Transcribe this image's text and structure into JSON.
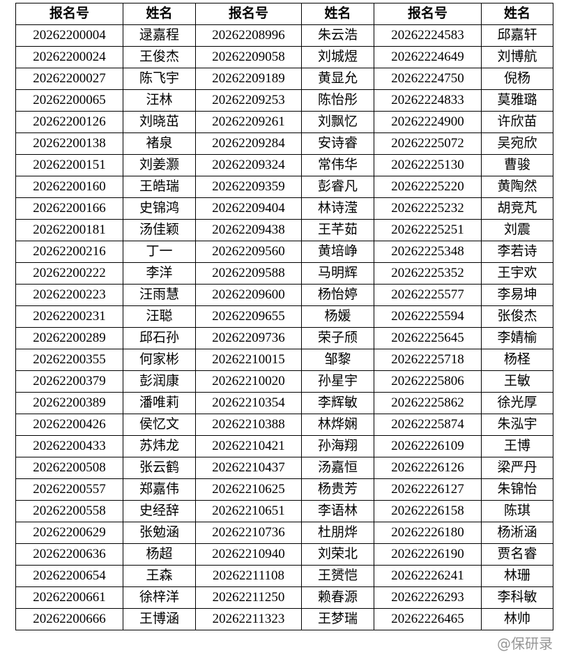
{
  "headers": [
    "报名号",
    "姓名",
    "报名号",
    "姓名",
    "报名号",
    "姓名"
  ],
  "rows": [
    [
      "20262200004",
      "逯嘉程",
      "20262208996",
      "朱云浩",
      "20262224583",
      "邱嘉轩"
    ],
    [
      "20262200024",
      "王俊杰",
      "20262209058",
      "刘城煜",
      "20262224649",
      "刘博航"
    ],
    [
      "20262200027",
      "陈飞宇",
      "20262209189",
      "黄显允",
      "20262224750",
      "倪杨"
    ],
    [
      "20262200065",
      "汪林",
      "20262209253",
      "陈怡彤",
      "20262224833",
      "莫雅璐"
    ],
    [
      "20262200126",
      "刘晓茁",
      "20262209261",
      "刘飘忆",
      "20262224900",
      "许欣苗"
    ],
    [
      "20262200138",
      "褚泉",
      "20262209284",
      "安诗睿",
      "20262225072",
      "吴宛欣"
    ],
    [
      "20262200151",
      "刘姜灏",
      "20262209324",
      "常伟华",
      "20262225130",
      "曹骏"
    ],
    [
      "20262200160",
      "王皓瑞",
      "20262209359",
      "彭睿凡",
      "20262225220",
      "黄陶然"
    ],
    [
      "20262200166",
      "史锦鸿",
      "20262209404",
      "林诗滢",
      "20262225232",
      "胡竞芃"
    ],
    [
      "20262200181",
      "汤佳颖",
      "20262209438",
      "王芊茹",
      "20262225251",
      "刘震"
    ],
    [
      "20262200216",
      "丁一",
      "20262209560",
      "黄培峥",
      "20262225348",
      "李若诗"
    ],
    [
      "20262200222",
      "李洋",
      "20262209588",
      "马明辉",
      "20262225352",
      "王宇欢"
    ],
    [
      "20262200223",
      "汪雨慧",
      "20262209600",
      "杨怡婷",
      "20262225577",
      "李易坤"
    ],
    [
      "20262200231",
      "汪聪",
      "20262209655",
      "杨媛",
      "20262225594",
      "张俊杰"
    ],
    [
      "20262200289",
      "邱石孙",
      "20262209736",
      "荣子颀",
      "20262225645",
      "李婧榆"
    ],
    [
      "20262200355",
      "何家彬",
      "20262210015",
      "邹黎",
      "20262225718",
      "杨柽"
    ],
    [
      "20262200379",
      "彭润康",
      "20262210020",
      "孙星宇",
      "20262225806",
      "王敏"
    ],
    [
      "20262200389",
      "潘唯莉",
      "20262210354",
      "李辉敏",
      "20262225862",
      "徐光厚"
    ],
    [
      "20262200426",
      "侯忆文",
      "20262210388",
      "林烨娴",
      "20262225874",
      "朱泓宇"
    ],
    [
      "20262200433",
      "苏炜龙",
      "20262210421",
      "孙海翔",
      "20262226109",
      "王博"
    ],
    [
      "20262200508",
      "张云鹤",
      "20262210437",
      "汤嘉恒",
      "20262226126",
      "梁严丹"
    ],
    [
      "20262200557",
      "郑嘉伟",
      "20262210625",
      "杨贵芳",
      "20262226127",
      "朱锦怡"
    ],
    [
      "20262200558",
      "史经辞",
      "20262210651",
      "李语林",
      "20262226158",
      "陈琪"
    ],
    [
      "20262200629",
      "张勉涵",
      "20262210736",
      "杜朋烨",
      "20262226180",
      "杨淅涵"
    ],
    [
      "20262200636",
      "杨超",
      "20262210940",
      "刘荣北",
      "20262226190",
      "贾名睿"
    ],
    [
      "20262200654",
      "王森",
      "20262211108",
      "王赟恺",
      "20262226241",
      "林珊"
    ],
    [
      "20262200661",
      "徐梓洋",
      "20262211250",
      "赖春源",
      "20262226293",
      "李科敏"
    ],
    [
      "20262200666",
      "王博涵",
      "20262211323",
      "王梦瑞",
      "20262226465",
      "林帅"
    ]
  ],
  "watermark": "@保研录"
}
